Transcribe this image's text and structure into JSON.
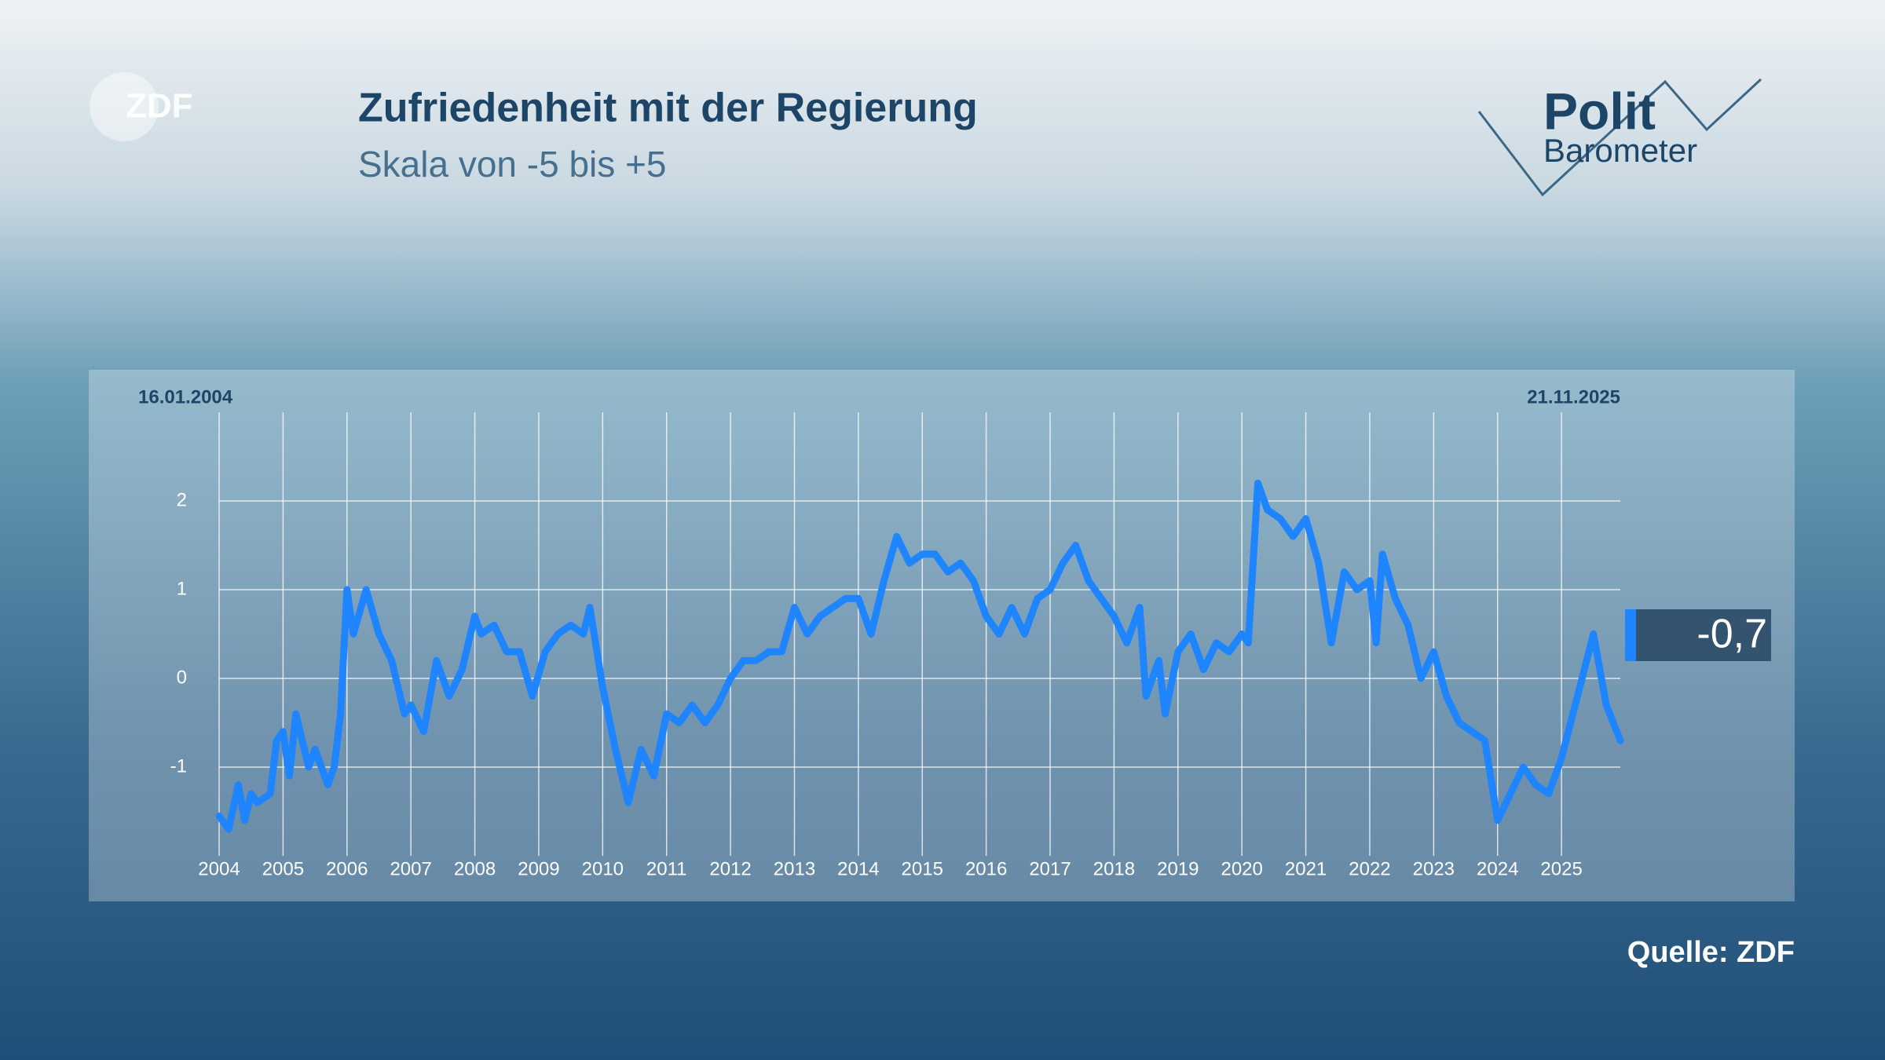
{
  "chart_data": {
    "type": "line",
    "title": "Zufriedenheit mit der Regierung",
    "subtitle": "Skala von -5 bis +5",
    "start_label": "16.01.2004",
    "end_label": "21.11.2025",
    "source": "Quelle: ZDF",
    "logo": "ZDF",
    "brand": {
      "line1": "Polit",
      "line2": "Barometer"
    },
    "current": {
      "value": -0.7,
      "label": "-0,7"
    },
    "color": "#1e85ff",
    "grid": true,
    "xlim": [
      2004,
      2025.92
    ],
    "xticks": [
      2004,
      2005,
      2006,
      2007,
      2008,
      2009,
      2010,
      2011,
      2012,
      2013,
      2014,
      2015,
      2016,
      2017,
      2018,
      2019,
      2020,
      2021,
      2022,
      2023,
      2024,
      2025
    ],
    "ylim": [
      -2,
      3
    ],
    "yticks": [
      -1,
      0,
      1,
      2
    ],
    "x": [
      2004.0,
      2004.15,
      2004.3,
      2004.4,
      2004.5,
      2004.6,
      2004.8,
      2004.9,
      2005.0,
      2005.1,
      2005.2,
      2005.4,
      2005.5,
      2005.7,
      2005.8,
      2005.9,
      2006.0,
      2006.1,
      2006.3,
      2006.5,
      2006.7,
      2006.9,
      2007.0,
      2007.2,
      2007.4,
      2007.6,
      2007.8,
      2008.0,
      2008.1,
      2008.3,
      2008.5,
      2008.7,
      2008.9,
      2009.1,
      2009.3,
      2009.5,
      2009.7,
      2009.8,
      2010.0,
      2010.2,
      2010.4,
      2010.6,
      2010.8,
      2011.0,
      2011.2,
      2011.4,
      2011.6,
      2011.8,
      2012.0,
      2012.2,
      2012.4,
      2012.6,
      2012.8,
      2013.0,
      2013.2,
      2013.4,
      2013.6,
      2013.8,
      2014.0,
      2014.2,
      2014.4,
      2014.6,
      2014.8,
      2015.0,
      2015.2,
      2015.4,
      2015.6,
      2015.8,
      2016.0,
      2016.2,
      2016.4,
      2016.6,
      2016.8,
      2017.0,
      2017.2,
      2017.4,
      2017.6,
      2017.8,
      2018.0,
      2018.2,
      2018.4,
      2018.5,
      2018.7,
      2018.8,
      2019.0,
      2019.2,
      2019.4,
      2019.6,
      2019.8,
      2020.0,
      2020.1,
      2020.25,
      2020.4,
      2020.6,
      2020.8,
      2021.0,
      2021.2,
      2021.4,
      2021.6,
      2021.8,
      2022.0,
      2022.1,
      2022.2,
      2022.4,
      2022.6,
      2022.8,
      2023.0,
      2023.2,
      2023.4,
      2023.6,
      2023.8,
      2024.0,
      2024.2,
      2024.4,
      2024.6,
      2024.8,
      2025.0,
      2025.5,
      2025.7,
      2025.92
    ],
    "values": [
      -1.55,
      -1.7,
      -1.2,
      -1.6,
      -1.3,
      -1.4,
      -1.3,
      -0.7,
      -0.6,
      -1.1,
      -0.4,
      -1.0,
      -0.8,
      -1.2,
      -1.0,
      -0.4,
      1.0,
      0.5,
      1.0,
      0.5,
      0.2,
      -0.4,
      -0.3,
      -0.6,
      0.2,
      -0.2,
      0.1,
      0.7,
      0.5,
      0.6,
      0.3,
      0.3,
      -0.2,
      0.3,
      0.5,
      0.6,
      0.5,
      0.8,
      -0.1,
      -0.8,
      -1.4,
      -0.8,
      -1.1,
      -0.4,
      -0.5,
      -0.3,
      -0.5,
      -0.3,
      0.0,
      0.2,
      0.2,
      0.3,
      0.3,
      0.8,
      0.5,
      0.7,
      0.8,
      0.9,
      0.9,
      0.5,
      1.1,
      1.6,
      1.3,
      1.4,
      1.4,
      1.2,
      1.3,
      1.1,
      0.7,
      0.5,
      0.8,
      0.5,
      0.9,
      1.0,
      1.3,
      1.5,
      1.1,
      0.9,
      0.7,
      0.4,
      0.8,
      -0.2,
      0.2,
      -0.4,
      0.3,
      0.5,
      0.1,
      0.4,
      0.3,
      0.5,
      0.4,
      2.2,
      1.9,
      1.8,
      1.6,
      1.8,
      1.3,
      0.4,
      1.2,
      1.0,
      1.1,
      0.4,
      1.4,
      0.9,
      0.6,
      0.0,
      0.3,
      -0.2,
      -0.5,
      -0.6,
      -0.7,
      -1.6,
      -1.3,
      -1.0,
      -1.2,
      -1.3,
      -0.9,
      0.5,
      -0.3,
      -0.7
    ]
  }
}
